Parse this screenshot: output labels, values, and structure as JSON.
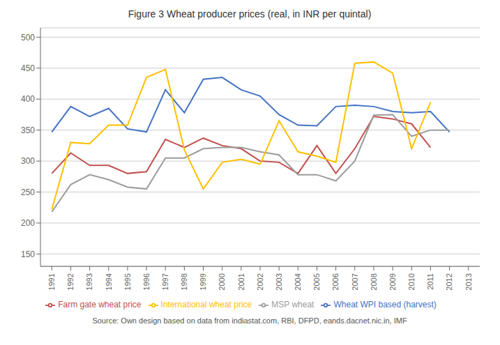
{
  "chart_data": {
    "type": "line",
    "title": "Figure 3 Wheat producer prices (real, in INR per quintal)",
    "source": "Source: Own design based on data from indiastat.com, RBI, DFPD, eands.dacnet.nic.in, IMF",
    "x": [
      1991,
      1992,
      1993,
      1994,
      1995,
      1996,
      1997,
      1998,
      1999,
      2000,
      2001,
      2002,
      2003,
      2004,
      2005,
      2006,
      2007,
      2008,
      2009,
      2010,
      2011,
      2012,
      2013
    ],
    "xlim": [
      1990.4,
      2013.6
    ],
    "xticks": [
      1991,
      1992,
      1993,
      1994,
      1995,
      1996,
      1997,
      1998,
      1999,
      2000,
      2001,
      2002,
      2003,
      2004,
      2005,
      2006,
      2007,
      2008,
      2009,
      2010,
      2011,
      2012,
      2013
    ],
    "ylim": [
      130,
      515
    ],
    "yticks": [
      150,
      200,
      250,
      300,
      350,
      400,
      450,
      500
    ],
    "grid": true,
    "legend": "bottom",
    "series": [
      {
        "name": "Wheat WPI based (harvest)",
        "color": "#4472C4",
        "values": [
          347,
          388,
          372,
          385,
          352,
          347,
          415,
          378,
          432,
          435,
          415,
          405,
          375,
          358,
          357,
          388,
          390,
          388,
          380,
          378,
          380,
          347,
          null
        ]
      },
      {
        "name": "Farm gate wheat price",
        "color": "#C0504D",
        "values": [
          280,
          313,
          293,
          293,
          280,
          283,
          335,
          322,
          337,
          325,
          320,
          300,
          298,
          280,
          325,
          280,
          320,
          372,
          368,
          360,
          322,
          null,
          null
        ]
      },
      {
        "name": "MSP wheat",
        "color": "#9C9C9C",
        "values": [
          218,
          262,
          278,
          270,
          258,
          255,
          305,
          305,
          320,
          322,
          322,
          315,
          310,
          278,
          278,
          268,
          300,
          374,
          375,
          340,
          350,
          350,
          null
        ]
      },
      {
        "name": "International wheat price",
        "color": "#FFC000",
        "values": [
          222,
          330,
          328,
          358,
          358,
          435,
          448,
          318,
          255,
          298,
          303,
          295,
          365,
          315,
          308,
          298,
          458,
          460,
          442,
          320,
          395,
          null,
          null
        ]
      }
    ]
  }
}
